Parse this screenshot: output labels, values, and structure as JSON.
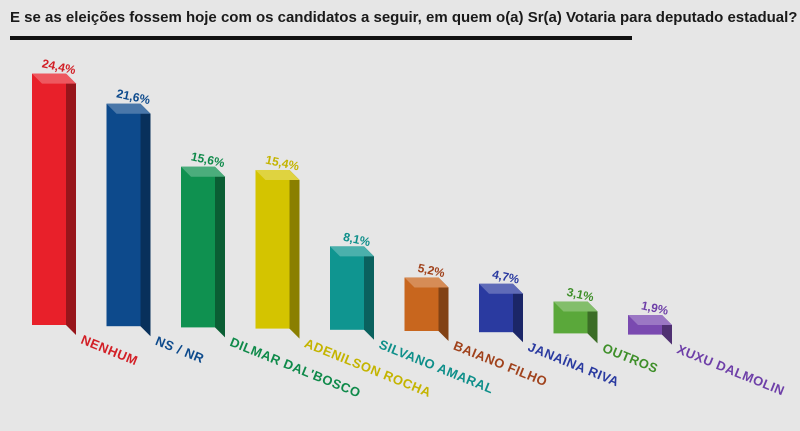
{
  "chart_data": {
    "type": "bar",
    "title": "E se as eleições fossem hoje com os candidatos a seguir, em quem o(a) Sr(a) Votaria para deputado estadual?",
    "categories": [
      "NENHUM",
      "NS / NR",
      "DILMAR DAL'BOSCO",
      "ADENILSON ROCHA",
      "SILVANO AMARAL",
      "BAIANO FILHO",
      "JANAÍNA RIVA",
      "OUTROS",
      "XUXU DALMOLIN"
    ],
    "values": [
      24.4,
      21.6,
      15.6,
      15.4,
      8.1,
      5.2,
      4.7,
      3.1,
      1.9
    ],
    "value_labels": [
      "24,4%",
      "21,6%",
      "15,6%",
      "15,4%",
      "8,1%",
      "5,2%",
      "4,7%",
      "3,1%",
      "1,9%"
    ],
    "colors": [
      "#e8202a",
      "#0d4a8c",
      "#0f9150",
      "#d4c400",
      "#0f9590",
      "#c8661e",
      "#2a3aa0",
      "#5aa83a",
      "#7a4ab0"
    ],
    "label_colors": [
      "#d21f26",
      "#0d4a8c",
      "#0f8a4a",
      "#c4b400",
      "#0e8f8a",
      "#a0421c",
      "#2a3aa0",
      "#3f8f2a",
      "#6e3fa8"
    ],
    "xlabel": "",
    "ylabel": "",
    "ylim": [
      0,
      25
    ],
    "grid": false,
    "legend": "none"
  }
}
